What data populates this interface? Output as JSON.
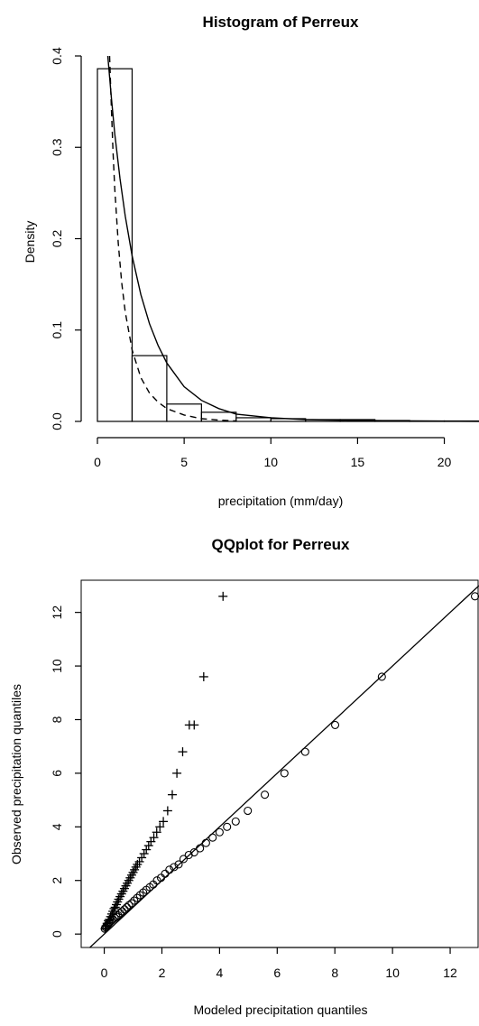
{
  "chart_data": [
    {
      "type": "bar",
      "title": "Histogram of Perreux",
      "xlabel": "precipitation (mm/day)",
      "ylabel": "Density",
      "xlim": [
        0,
        22
      ],
      "ylim": [
        0,
        0.4
      ],
      "xticks": [
        "0",
        "5",
        "10",
        "15",
        "20"
      ],
      "yticks": [
        "0.0",
        "0.1",
        "0.2",
        "0.3",
        "0.4"
      ],
      "bins": [
        {
          "x0": 0,
          "x1": 2,
          "density": 0.386
        },
        {
          "x0": 2,
          "x1": 4,
          "density": 0.072
        },
        {
          "x0": 4,
          "x1": 6,
          "density": 0.019
        },
        {
          "x0": 6,
          "x1": 8,
          "density": 0.01
        },
        {
          "x0": 8,
          "x1": 10,
          "density": 0.004
        },
        {
          "x0": 10,
          "x1": 12,
          "density": 0.003
        },
        {
          "x0": 12,
          "x1": 14,
          "density": 0.002
        },
        {
          "x0": 14,
          "x1": 16,
          "density": 0.002
        },
        {
          "x0": 16,
          "x1": 18,
          "density": 0.001
        },
        {
          "x0": 18,
          "x1": 20,
          "density": 0.0005
        },
        {
          "x0": 20,
          "x1": 22,
          "density": 0.0005
        }
      ],
      "series": [
        {
          "style": "solid",
          "x": [
            0.6,
            0.8,
            1.0,
            1.3,
            1.6,
            2.0,
            2.5,
            3.0,
            3.5,
            4.0,
            5.0,
            6.0,
            7.0,
            8.0,
            10.0,
            12.0,
            15.0,
            18.0,
            22.0
          ],
          "y": [
            0.4,
            0.355,
            0.315,
            0.266,
            0.225,
            0.181,
            0.139,
            0.107,
            0.083,
            0.064,
            0.038,
            0.023,
            0.014,
            0.008,
            0.004,
            0.002,
            0.001,
            0.0005,
            0.0001
          ]
        },
        {
          "style": "dashed",
          "x": [
            0.7,
            0.8,
            0.9,
            1.0,
            1.2,
            1.4,
            1.6,
            2.0,
            2.5,
            3.0,
            3.5,
            4.0,
            5.0,
            6.0,
            7.0,
            8.0
          ],
          "y": [
            0.4,
            0.345,
            0.295,
            0.255,
            0.195,
            0.152,
            0.12,
            0.078,
            0.048,
            0.031,
            0.021,
            0.014,
            0.007,
            0.003,
            0.0015,
            0.0005
          ]
        }
      ]
    },
    {
      "type": "scatter",
      "title": "QQplot for Perreux",
      "xlabel": "Modeled precipitation quantiles",
      "ylabel": "Observed precipitation quantiles",
      "xlim": [
        -0.8,
        13
      ],
      "ylim": [
        -0.5,
        13.2
      ],
      "xticks": [
        "0",
        "2",
        "4",
        "6",
        "8",
        "10",
        "12"
      ],
      "yticks": [
        "0",
        "2",
        "4",
        "6",
        "8",
        "10",
        "12"
      ],
      "reference_line": {
        "x": [
          -1,
          13
        ],
        "y": [
          -1,
          13
        ]
      },
      "series": [
        {
          "marker": "circle",
          "x": [
            0.02,
            0.05,
            0.08,
            0.12,
            0.16,
            0.2,
            0.25,
            0.3,
            0.36,
            0.42,
            0.48,
            0.55,
            0.62,
            0.7,
            0.78,
            0.86,
            0.95,
            1.04,
            1.14,
            1.24,
            1.35,
            1.46,
            1.58,
            1.7,
            1.83,
            1.97,
            2.11,
            2.26,
            2.42,
            2.58,
            2.75,
            2.93,
            3.12,
            3.32,
            3.53,
            3.76,
            4.0,
            4.26,
            4.56,
            4.98,
            5.57,
            6.25,
            6.97,
            8.01,
            9.63,
            12.86
          ],
          "y": [
            0.2,
            0.25,
            0.3,
            0.35,
            0.4,
            0.45,
            0.5,
            0.55,
            0.6,
            0.65,
            0.7,
            0.78,
            0.85,
            0.92,
            1.0,
            1.08,
            1.15,
            1.25,
            1.35,
            1.45,
            1.55,
            1.65,
            1.75,
            1.85,
            2.0,
            2.1,
            2.25,
            2.4,
            2.5,
            2.6,
            2.8,
            2.95,
            3.05,
            3.2,
            3.4,
            3.6,
            3.8,
            4.0,
            4.2,
            4.6,
            5.2,
            6.0,
            6.8,
            7.8,
            9.6,
            12.6
          ]
        },
        {
          "marker": "plus",
          "x": [
            0.03,
            0.06,
            0.1,
            0.14,
            0.18,
            0.22,
            0.26,
            0.3,
            0.34,
            0.38,
            0.42,
            0.46,
            0.5,
            0.55,
            0.6,
            0.65,
            0.7,
            0.75,
            0.8,
            0.85,
            0.9,
            0.95,
            1.0,
            1.05,
            1.1,
            1.15,
            1.22,
            1.3,
            1.38,
            1.46,
            1.54,
            1.62,
            1.72,
            1.82,
            1.93,
            2.05,
            2.2,
            2.36,
            2.52,
            2.72,
            2.95,
            3.12,
            3.45,
            4.12
          ],
          "y": [
            0.2,
            0.3,
            0.4,
            0.5,
            0.55,
            0.65,
            0.75,
            0.85,
            0.95,
            1.0,
            1.1,
            1.2,
            1.3,
            1.4,
            1.5,
            1.6,
            1.7,
            1.8,
            1.9,
            2.0,
            2.1,
            2.2,
            2.3,
            2.4,
            2.5,
            2.6,
            2.7,
            2.85,
            3.0,
            3.15,
            3.3,
            3.45,
            3.6,
            3.8,
            4.0,
            4.2,
            4.6,
            5.2,
            6.0,
            6.8,
            7.8,
            7.8,
            9.6,
            12.6
          ]
        }
      ]
    }
  ]
}
